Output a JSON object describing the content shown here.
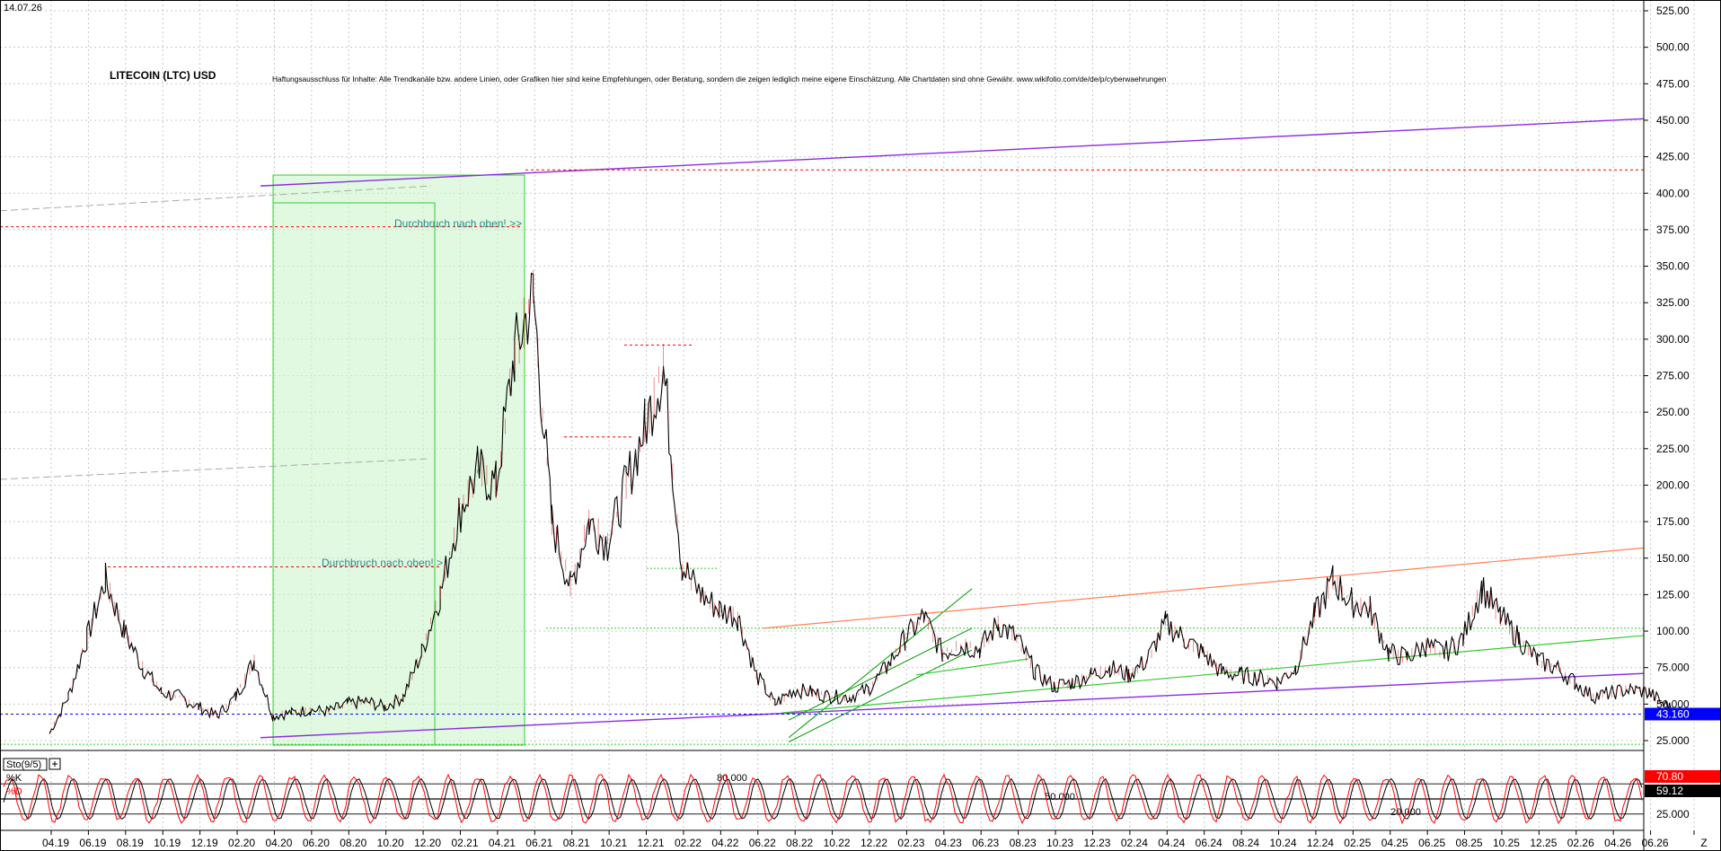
{
  "chart_data": {
    "type": "line",
    "date_label": "14.07.26",
    "title": "LITECOIN (LTC) USD",
    "disclaimer": "Haftungsausschluss für Inhalte: Alle Trendkanäle bzw. andere Linien, oder Grafiken hier sind keine Empfehlungen, oder Beratung, sondern die zeigen lediglich meine eigene Einschätzung. Alle Chartdaten sind ohne Gewähr. www.wikifolio.com/de/de/p/cyberwaehrungen",
    "ylim": [
      8,
      530
    ],
    "y_ticks": [
      "25.000",
      "50.000",
      "75.000",
      "100.00",
      "125.00",
      "150.00",
      "175.00",
      "200.00",
      "225.00",
      "250.00",
      "275.00",
      "300.00",
      "325.00",
      "350.00",
      "375.00",
      "400.00",
      "425.00",
      "450.00",
      "475.00",
      "500.00",
      "525.00"
    ],
    "x_ticks": [
      "04.19",
      "06.19",
      "08.19",
      "10.19",
      "12.19",
      "02.20",
      "04.20",
      "06.20",
      "08.20",
      "10.20",
      "12.20",
      "02.21",
      "04.21",
      "06.21",
      "08.21",
      "10.21",
      "12.21",
      "02.22",
      "04.22",
      "06.22",
      "08.22",
      "10.22",
      "12.22",
      "02.23",
      "04.23",
      "06.23",
      "08.23",
      "10.23",
      "12.23",
      "02.24",
      "04.24",
      "06.24",
      "08.24",
      "10.24",
      "12.24",
      "02.25",
      "04.25",
      "06.25",
      "08.25",
      "10.25",
      "12.25",
      "02.26",
      "04.26",
      "06.26",
      "Z"
    ],
    "series": [
      {
        "color": "#000000",
        "x": [
          "03.19",
          "04.19",
          "05.19",
          "06.19",
          "07.19",
          "08.19",
          "09.19",
          "10.19",
          "11.19",
          "12.19",
          "01.20",
          "02.20",
          "03.20",
          "04.20",
          "05.20",
          "06.20",
          "07.20",
          "08.20",
          "09.20",
          "10.20",
          "11.20",
          "12.20",
          "01.21",
          "02.21",
          "03.21",
          "04.21",
          "05.21",
          "06.21",
          "07.21",
          "08.21",
          "09.21",
          "10.21",
          "11.21",
          "12.21",
          "01.22",
          "02.22",
          "03.22",
          "04.22",
          "05.22",
          "06.22",
          "07.22",
          "08.22",
          "09.22",
          "10.22",
          "11.22",
          "12.22",
          "01.23",
          "02.23",
          "03.23",
          "04.23",
          "05.23",
          "06.23",
          "07.23",
          "08.23",
          "09.23",
          "10.23",
          "11.23",
          "12.23",
          "01.24",
          "02.24",
          "03.24",
          "04.24",
          "05.24",
          "06.24",
          "07.24",
          "08.24",
          "09.24",
          "10.24",
          "11.24",
          "12.24",
          "01.25",
          "02.25",
          "03.25",
          "04.25",
          "05.25",
          "06.25",
          "07.25",
          "08.25",
          "09.25",
          "10.25",
          "11.25",
          "12.25",
          "01.26",
          "02.26",
          "03.26",
          "04.26",
          "05.26",
          "06.26",
          "07.26"
        ],
        "values": [
          30,
          55,
          95,
          135,
          100,
          75,
          58,
          55,
          48,
          42,
          55,
          80,
          42,
          44,
          46,
          45,
          50,
          52,
          48,
          55,
          85,
          125,
          180,
          210,
          200,
          290,
          330,
          175,
          130,
          175,
          160,
          200,
          240,
          280,
          145,
          125,
          115,
          110,
          70,
          50,
          60,
          58,
          55,
          55,
          60,
          75,
          95,
          110,
          85,
          90,
          88,
          105,
          95,
          72,
          62,
          65,
          70,
          75,
          70,
          80,
          105,
          95,
          85,
          72,
          70,
          68,
          65,
          75,
          110,
          135,
          120,
          115,
          85,
          82,
          90,
          85,
          95,
          130,
          110,
          95,
          80,
          75,
          65,
          55,
          58,
          60,
          58,
          48,
          43
        ],
        "last_value": "43.160"
      }
    ],
    "annotations": [
      "Durchbruch nach oben! >>",
      "Durchbruch nach oben! >"
    ],
    "stochastic": {
      "label": "Sto(9/5)",
      "k_label": "%K",
      "d_label": "%D",
      "levels": [
        "80.000",
        "50.000",
        "20.000"
      ],
      "k_value": "70.80",
      "d_value": "59.12",
      "axis_tick": "25.000",
      "k_color": "#ff0000",
      "d_color": "#000000"
    },
    "grid": true,
    "colors": {
      "price_badge": "#0000ff",
      "k_badge": "#ff0000",
      "d_badge": "#000000",
      "channel_purple": "#8a2be2",
      "resistance_red": "#ff0000",
      "support_green": "#00cc00",
      "trend_orange": "#ff7f50",
      "breakout_box": "#ccf5cc"
    }
  }
}
